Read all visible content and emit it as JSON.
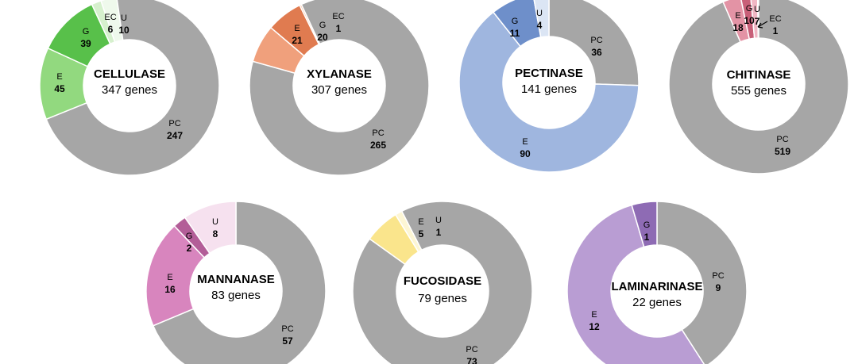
{
  "chart_data": [
    {
      "type": "pie",
      "title": "CELLULASE",
      "subtitle": "347 genes",
      "slices": [
        {
          "abbr": "U",
          "value": 10,
          "color": "#eff9ec"
        },
        {
          "abbr": "PC",
          "value": 247,
          "color": "#a6a6a6"
        },
        {
          "abbr": "E",
          "value": 45,
          "color": "#92d97f"
        },
        {
          "abbr": "G",
          "value": 39,
          "color": "#58c04a"
        },
        {
          "abbr": "EC",
          "value": 6,
          "color": "#d6f0cd"
        }
      ]
    },
    {
      "type": "pie",
      "title": "XYLANASE",
      "subtitle": "307 genes",
      "slices": [
        {
          "abbr": "PC",
          "value": 265,
          "color": "#a6a6a6"
        },
        {
          "abbr": "E",
          "value": 21,
          "color": "#f0a07c"
        },
        {
          "abbr": "G",
          "value": 20,
          "color": "#e07b50"
        },
        {
          "abbr": "EC",
          "value": 1,
          "color": "#f7c8ae"
        }
      ]
    },
    {
      "type": "pie",
      "title": "PECTINASE",
      "subtitle": "141 genes",
      "slices": [
        {
          "abbr": "PC",
          "value": 36,
          "color": "#a6a6a6"
        },
        {
          "abbr": "E",
          "value": 90,
          "color": "#9fb6df"
        },
        {
          "abbr": "G",
          "value": 11,
          "color": "#6e8fca"
        },
        {
          "abbr": "U",
          "value": 4,
          "color": "#dbe5f4"
        }
      ]
    },
    {
      "type": "pie",
      "title": "CHITINASE",
      "subtitle": "555 genes",
      "slices": [
        {
          "abbr": "EC",
          "value": 1,
          "color": "#f6d7de"
        },
        {
          "abbr": "PC",
          "value": 519,
          "color": "#a6a6a6"
        },
        {
          "abbr": "E",
          "value": 18,
          "color": "#e393a5"
        },
        {
          "abbr": "G",
          "value": 10,
          "color": "#c85f78"
        },
        {
          "abbr": "U",
          "value": 7,
          "color": "#f0b7c4"
        }
      ]
    },
    {
      "type": "pie",
      "title": "MANNANASE",
      "subtitle": "83 genes",
      "slices": [
        {
          "abbr": "PC",
          "value": 57,
          "color": "#a6a6a6"
        },
        {
          "abbr": "E",
          "value": 16,
          "color": "#d885be"
        },
        {
          "abbr": "G",
          "value": 2,
          "color": "#b35e98"
        },
        {
          "abbr": "U",
          "value": 8,
          "color": "#f6e1ef"
        }
      ]
    },
    {
      "type": "pie",
      "title": "FUCOSIDASE",
      "subtitle": "79 genes",
      "slices": [
        {
          "abbr": "PC",
          "value": 73,
          "color": "#a6a6a6"
        },
        {
          "abbr": "E",
          "value": 5,
          "color": "#fae58c"
        },
        {
          "abbr": "U",
          "value": 1,
          "color": "#fdf6d4"
        }
      ]
    },
    {
      "type": "pie",
      "title": "LAMINARINASE",
      "subtitle": "22 genes",
      "slices": [
        {
          "abbr": "PC",
          "value": 9,
          "color": "#a6a6a6"
        },
        {
          "abbr": "E",
          "value": 12,
          "color": "#b99dd3"
        },
        {
          "abbr": "G",
          "value": 1,
          "color": "#8e6bb4"
        }
      ]
    }
  ]
}
